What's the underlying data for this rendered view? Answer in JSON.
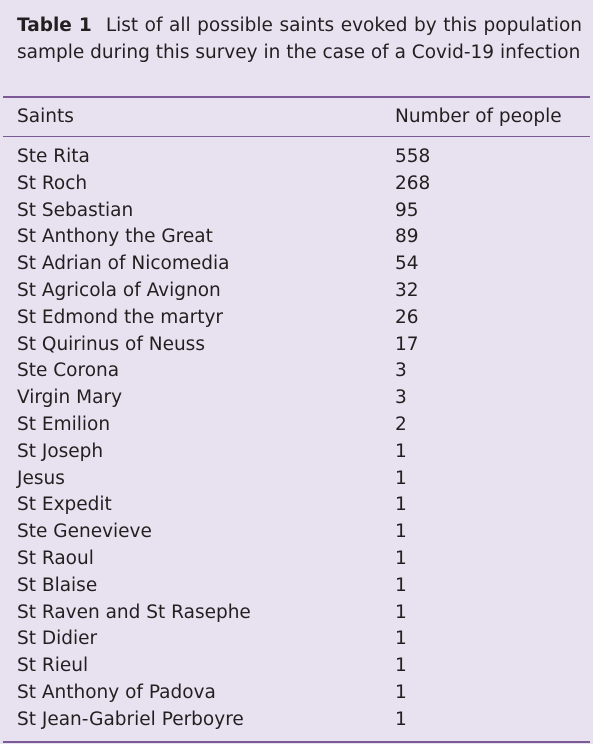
{
  "caption": {
    "label": "Table 1",
    "text": "List of all possible saints evoked by this population sample during this survey in the case of a Covid-19 infection"
  },
  "header": {
    "saints": "Saints",
    "count": "Number of people"
  },
  "rows": [
    {
      "saint": "Ste Rita",
      "count": "558"
    },
    {
      "saint": "St Roch",
      "count": "268"
    },
    {
      "saint": "St Sebastian",
      "count": "95"
    },
    {
      "saint": "St Anthony the Great",
      "count": "89"
    },
    {
      "saint": "St Adrian of Nicomedia",
      "count": "54"
    },
    {
      "saint": "St Agricola of Avignon",
      "count": "32"
    },
    {
      "saint": "St Edmond the martyr",
      "count": "26"
    },
    {
      "saint": "St Quirinus of Neuss",
      "count": "17"
    },
    {
      "saint": "Ste Corona",
      "count": "3"
    },
    {
      "saint": "Virgin Mary",
      "count": "3"
    },
    {
      "saint": "St Emilion",
      "count": "2"
    },
    {
      "saint": "St Joseph",
      "count": "1"
    },
    {
      "saint": "Jesus",
      "count": "1"
    },
    {
      "saint": "St Expedit",
      "count": "1"
    },
    {
      "saint": "Ste Genevieve",
      "count": "1"
    },
    {
      "saint": "St Raoul",
      "count": "1"
    },
    {
      "saint": "St Blaise",
      "count": "1"
    },
    {
      "saint": "St Raven and St Rasephe",
      "count": "1"
    },
    {
      "saint": "St Didier",
      "count": "1"
    },
    {
      "saint": "St Rieul",
      "count": "1"
    },
    {
      "saint": "St Anthony of Padova",
      "count": "1"
    },
    {
      "saint": "St Jean-Gabriel Perboyre",
      "count": "1"
    }
  ]
}
